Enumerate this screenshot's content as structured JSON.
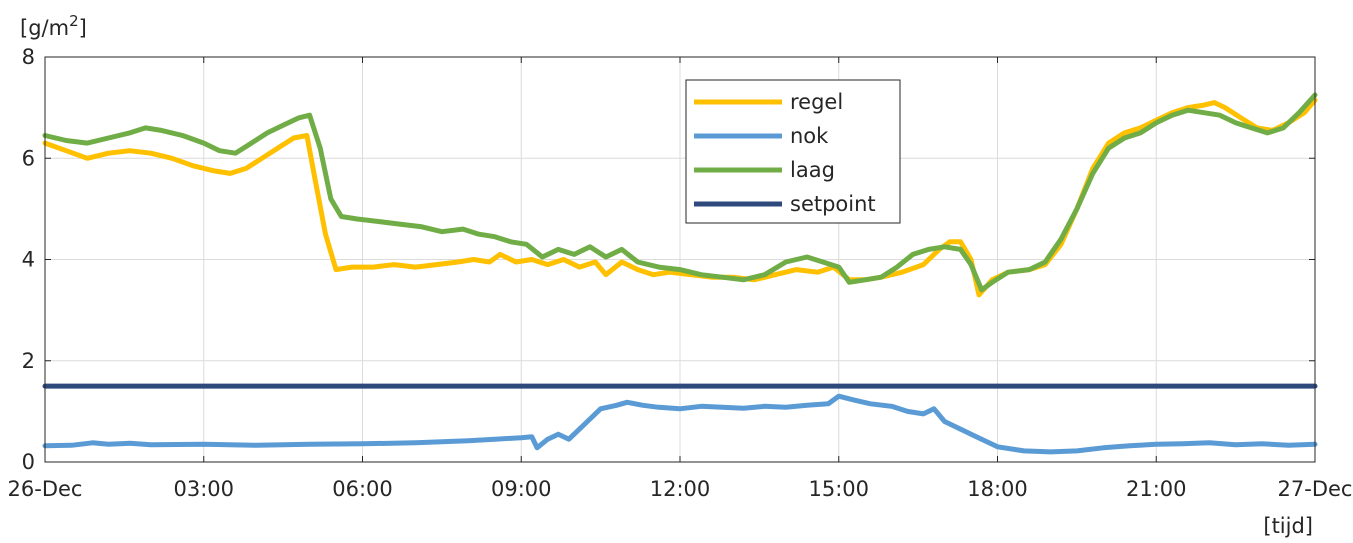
{
  "chart_data": {
    "type": "line",
    "ylabel": "[g/m²]",
    "ylabel_base": "[g/m",
    "ylabel_sup": "2",
    "ylabel_close": "]",
    "xlabel": "[tijd]",
    "ylim": [
      0,
      8
    ],
    "xlim": [
      0,
      24
    ],
    "yticks": [
      0,
      2,
      4,
      6,
      8
    ],
    "ytick_labels": [
      "0",
      "2",
      "4",
      "6",
      "8"
    ],
    "xticks": [
      0,
      3,
      6,
      9,
      12,
      15,
      18,
      21,
      24
    ],
    "xtick_labels": [
      "26-Dec",
      "03:00",
      "06:00",
      "09:00",
      "12:00",
      "15:00",
      "18:00",
      "21:00",
      "27-Dec"
    ],
    "grid": true,
    "legend_position": "top-center",
    "series": [
      {
        "name": "regel",
        "color": "#FFC000",
        "points": [
          [
            0,
            6.3
          ],
          [
            0.4,
            6.15
          ],
          [
            0.8,
            6.0
          ],
          [
            1.2,
            6.1
          ],
          [
            1.6,
            6.15
          ],
          [
            2.0,
            6.1
          ],
          [
            2.4,
            6.0
          ],
          [
            2.8,
            5.85
          ],
          [
            3.2,
            5.75
          ],
          [
            3.5,
            5.7
          ],
          [
            3.8,
            5.8
          ],
          [
            4.1,
            6.0
          ],
          [
            4.4,
            6.2
          ],
          [
            4.7,
            6.4
          ],
          [
            4.95,
            6.45
          ],
          [
            5.1,
            5.6
          ],
          [
            5.3,
            4.5
          ],
          [
            5.5,
            3.8
          ],
          [
            5.8,
            3.85
          ],
          [
            6.2,
            3.85
          ],
          [
            6.6,
            3.9
          ],
          [
            7.0,
            3.85
          ],
          [
            7.4,
            3.9
          ],
          [
            7.8,
            3.95
          ],
          [
            8.1,
            4.0
          ],
          [
            8.4,
            3.95
          ],
          [
            8.6,
            4.1
          ],
          [
            8.9,
            3.95
          ],
          [
            9.2,
            4.0
          ],
          [
            9.5,
            3.9
          ],
          [
            9.8,
            4.0
          ],
          [
            10.1,
            3.85
          ],
          [
            10.4,
            3.95
          ],
          [
            10.6,
            3.7
          ],
          [
            10.9,
            3.95
          ],
          [
            11.2,
            3.8
          ],
          [
            11.5,
            3.7
          ],
          [
            11.8,
            3.75
          ],
          [
            12.2,
            3.7
          ],
          [
            12.6,
            3.65
          ],
          [
            13.0,
            3.65
          ],
          [
            13.4,
            3.6
          ],
          [
            13.8,
            3.7
          ],
          [
            14.2,
            3.8
          ],
          [
            14.6,
            3.75
          ],
          [
            14.9,
            3.85
          ],
          [
            15.2,
            3.6
          ],
          [
            15.5,
            3.6
          ],
          [
            15.8,
            3.65
          ],
          [
            16.2,
            3.75
          ],
          [
            16.6,
            3.9
          ],
          [
            16.9,
            4.2
          ],
          [
            17.1,
            4.35
          ],
          [
            17.3,
            4.35
          ],
          [
            17.5,
            4.0
          ],
          [
            17.65,
            3.3
          ],
          [
            17.9,
            3.6
          ],
          [
            18.2,
            3.75
          ],
          [
            18.6,
            3.8
          ],
          [
            18.9,
            3.9
          ],
          [
            19.2,
            4.3
          ],
          [
            19.5,
            5.0
          ],
          [
            19.8,
            5.8
          ],
          [
            20.1,
            6.3
          ],
          [
            20.4,
            6.5
          ],
          [
            20.7,
            6.6
          ],
          [
            21.0,
            6.75
          ],
          [
            21.3,
            6.9
          ],
          [
            21.6,
            7.0
          ],
          [
            21.9,
            7.05
          ],
          [
            22.1,
            7.1
          ],
          [
            22.3,
            7.0
          ],
          [
            22.6,
            6.8
          ],
          [
            22.9,
            6.6
          ],
          [
            23.2,
            6.55
          ],
          [
            23.5,
            6.7
          ],
          [
            23.8,
            6.9
          ],
          [
            24.0,
            7.15
          ]
        ]
      },
      {
        "name": "nok",
        "color": "#5B9BD5",
        "points": [
          [
            0,
            0.32
          ],
          [
            0.5,
            0.33
          ],
          [
            0.9,
            0.38
          ],
          [
            1.2,
            0.35
          ],
          [
            1.6,
            0.37
          ],
          [
            2.0,
            0.34
          ],
          [
            3.0,
            0.35
          ],
          [
            4.0,
            0.33
          ],
          [
            5.0,
            0.35
          ],
          [
            6.0,
            0.36
          ],
          [
            7.0,
            0.38
          ],
          [
            8.0,
            0.42
          ],
          [
            8.5,
            0.45
          ],
          [
            9.0,
            0.48
          ],
          [
            9.2,
            0.5
          ],
          [
            9.3,
            0.28
          ],
          [
            9.5,
            0.45
          ],
          [
            9.7,
            0.55
          ],
          [
            9.9,
            0.45
          ],
          [
            10.1,
            0.65
          ],
          [
            10.3,
            0.85
          ],
          [
            10.5,
            1.05
          ],
          [
            10.8,
            1.12
          ],
          [
            11.0,
            1.18
          ],
          [
            11.3,
            1.12
          ],
          [
            11.6,
            1.08
          ],
          [
            12.0,
            1.05
          ],
          [
            12.4,
            1.1
          ],
          [
            12.8,
            1.08
          ],
          [
            13.2,
            1.06
          ],
          [
            13.6,
            1.1
          ],
          [
            14.0,
            1.08
          ],
          [
            14.4,
            1.12
          ],
          [
            14.8,
            1.15
          ],
          [
            15.0,
            1.3
          ],
          [
            15.3,
            1.22
          ],
          [
            15.6,
            1.15
          ],
          [
            16.0,
            1.1
          ],
          [
            16.3,
            1.0
          ],
          [
            16.6,
            0.95
          ],
          [
            16.8,
            1.05
          ],
          [
            17.0,
            0.8
          ],
          [
            17.3,
            0.65
          ],
          [
            17.6,
            0.5
          ],
          [
            18.0,
            0.3
          ],
          [
            18.5,
            0.22
          ],
          [
            19.0,
            0.2
          ],
          [
            19.5,
            0.22
          ],
          [
            20.0,
            0.28
          ],
          [
            20.5,
            0.32
          ],
          [
            21.0,
            0.35
          ],
          [
            21.5,
            0.36
          ],
          [
            22.0,
            0.38
          ],
          [
            22.5,
            0.34
          ],
          [
            23.0,
            0.36
          ],
          [
            23.5,
            0.33
          ],
          [
            24.0,
            0.35
          ]
        ]
      },
      {
        "name": "laag",
        "color": "#70AD47",
        "points": [
          [
            0,
            6.45
          ],
          [
            0.4,
            6.35
          ],
          [
            0.8,
            6.3
          ],
          [
            1.2,
            6.4
          ],
          [
            1.6,
            6.5
          ],
          [
            1.9,
            6.6
          ],
          [
            2.2,
            6.55
          ],
          [
            2.6,
            6.45
          ],
          [
            3.0,
            6.3
          ],
          [
            3.3,
            6.15
          ],
          [
            3.6,
            6.1
          ],
          [
            3.9,
            6.3
          ],
          [
            4.2,
            6.5
          ],
          [
            4.5,
            6.65
          ],
          [
            4.8,
            6.8
          ],
          [
            5.0,
            6.85
          ],
          [
            5.2,
            6.2
          ],
          [
            5.4,
            5.2
          ],
          [
            5.6,
            4.85
          ],
          [
            5.9,
            4.8
          ],
          [
            6.3,
            4.75
          ],
          [
            6.7,
            4.7
          ],
          [
            7.1,
            4.65
          ],
          [
            7.5,
            4.55
          ],
          [
            7.9,
            4.6
          ],
          [
            8.2,
            4.5
          ],
          [
            8.5,
            4.45
          ],
          [
            8.8,
            4.35
          ],
          [
            9.1,
            4.3
          ],
          [
            9.4,
            4.05
          ],
          [
            9.7,
            4.2
          ],
          [
            10.0,
            4.1
          ],
          [
            10.3,
            4.25
          ],
          [
            10.6,
            4.05
          ],
          [
            10.9,
            4.2
          ],
          [
            11.2,
            3.95
          ],
          [
            11.6,
            3.85
          ],
          [
            12.0,
            3.8
          ],
          [
            12.4,
            3.7
          ],
          [
            12.8,
            3.65
          ],
          [
            13.2,
            3.6
          ],
          [
            13.6,
            3.7
          ],
          [
            14.0,
            3.95
          ],
          [
            14.4,
            4.05
          ],
          [
            14.7,
            3.95
          ],
          [
            15.0,
            3.85
          ],
          [
            15.2,
            3.55
          ],
          [
            15.5,
            3.6
          ],
          [
            15.8,
            3.65
          ],
          [
            16.1,
            3.85
          ],
          [
            16.4,
            4.1
          ],
          [
            16.7,
            4.2
          ],
          [
            17.0,
            4.25
          ],
          [
            17.3,
            4.2
          ],
          [
            17.5,
            3.9
          ],
          [
            17.7,
            3.4
          ],
          [
            17.9,
            3.55
          ],
          [
            18.2,
            3.75
          ],
          [
            18.6,
            3.8
          ],
          [
            18.9,
            3.95
          ],
          [
            19.2,
            4.4
          ],
          [
            19.5,
            5.0
          ],
          [
            19.8,
            5.7
          ],
          [
            20.1,
            6.2
          ],
          [
            20.4,
            6.4
          ],
          [
            20.7,
            6.5
          ],
          [
            21.0,
            6.7
          ],
          [
            21.3,
            6.85
          ],
          [
            21.6,
            6.95
          ],
          [
            21.9,
            6.9
          ],
          [
            22.2,
            6.85
          ],
          [
            22.5,
            6.7
          ],
          [
            22.8,
            6.6
          ],
          [
            23.1,
            6.5
          ],
          [
            23.4,
            6.6
          ],
          [
            23.7,
            6.9
          ],
          [
            24.0,
            7.25
          ]
        ]
      },
      {
        "name": "setpoint",
        "color": "#2E4A7D",
        "points": [
          [
            0,
            1.5
          ],
          [
            24,
            1.5
          ]
        ]
      }
    ]
  }
}
